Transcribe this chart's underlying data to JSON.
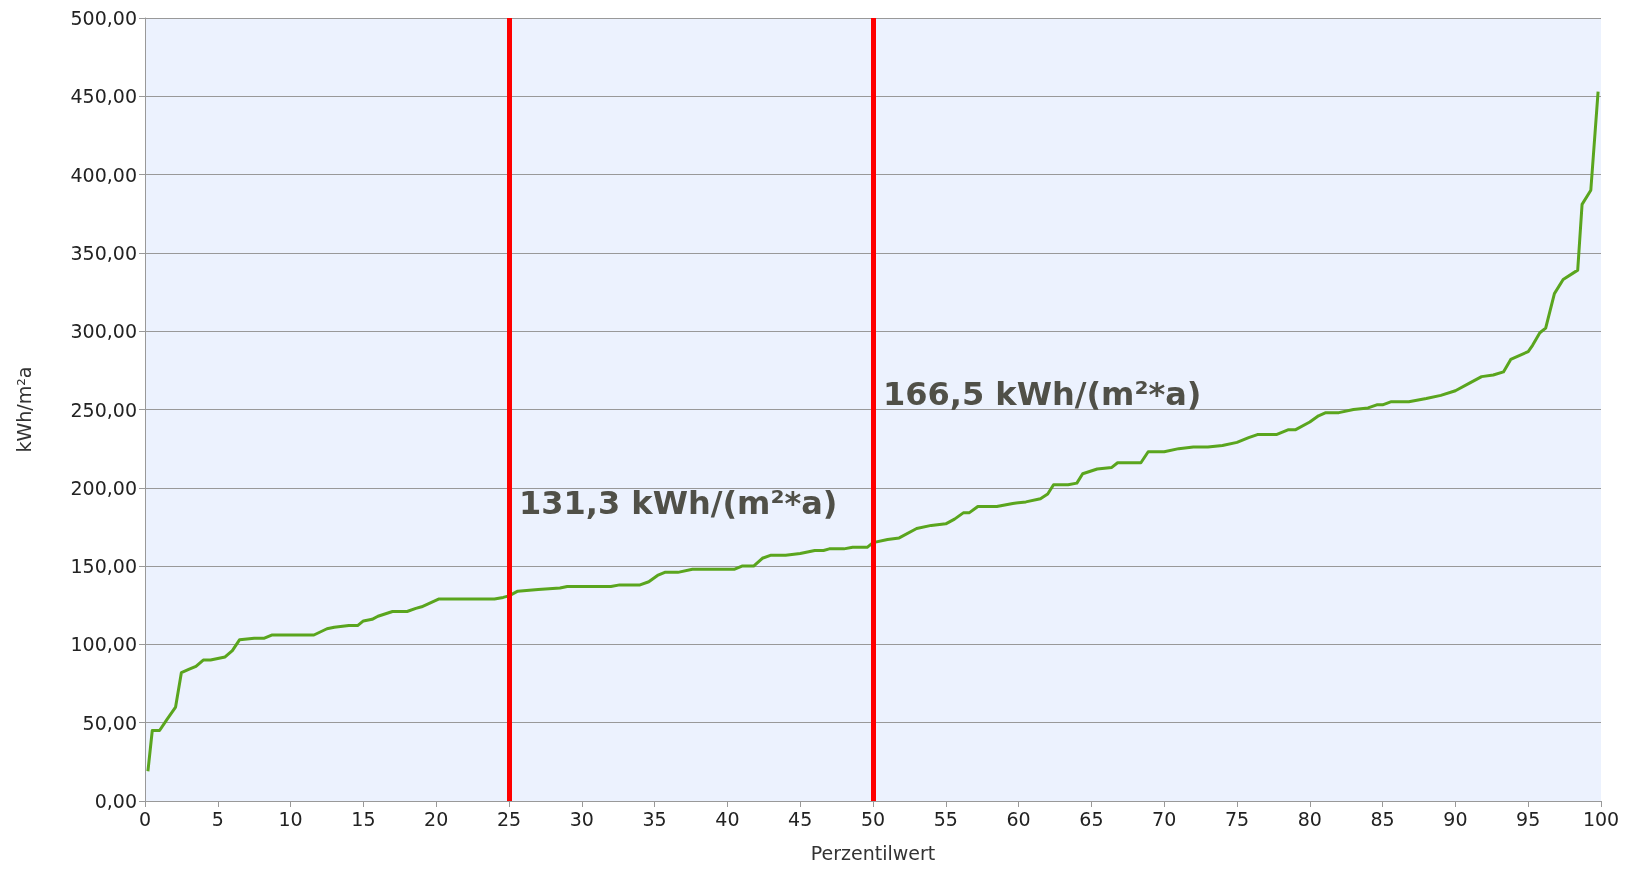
{
  "chart_data": {
    "type": "line",
    "xlabel": "Perzentilwert",
    "ylabel": "kWh/m²a",
    "series": [
      {
        "color": "#5aa51e",
        "x": [
          0.2,
          0.5,
          1.0,
          1.5,
          2.1,
          2.5,
          3.0,
          3.5,
          4.0,
          4.5,
          5.0,
          5.5,
          6.0,
          6.5,
          7.5,
          8.2,
          8.7,
          11.6,
          12.5,
          13.0,
          14.0,
          14.6,
          15.0,
          15.6,
          16.0,
          17.0,
          18.0,
          18.6,
          19.0,
          20.2,
          24.0,
          24.6,
          25.0,
          25.6,
          27.0,
          28.5,
          29.0,
          32.0,
          32.6,
          34.0,
          34.6,
          35.2,
          35.7,
          36.6,
          37.6,
          40.5,
          41.0,
          41.8,
          42.4,
          43.0,
          44.0,
          45.0,
          46.0,
          46.6,
          47.0,
          48.0,
          48.6,
          49.6,
          50.0,
          51.0,
          51.8,
          53.0,
          54.0,
          55.0,
          55.6,
          56.2,
          56.6,
          57.2,
          58.5,
          59.6,
          60.5,
          61.5,
          62.0,
          62.4,
          63.4,
          64.0,
          64.4,
          65.4,
          66.4,
          66.8,
          68.4,
          68.9,
          70.0,
          71.0,
          72.0,
          73.0,
          74.0,
          75.0,
          75.8,
          76.4,
          77.7,
          78.5,
          79.0,
          80.0,
          80.6,
          81.1,
          82.0,
          83.0,
          84.0,
          84.6,
          85.0,
          85.6,
          86.8,
          88.0,
          89.0,
          90.0,
          91.0,
          91.8,
          92.6,
          93.3,
          93.8,
          95.0,
          95.3,
          95.8,
          96.2,
          96.8,
          97.4,
          98.4,
          98.7,
          99.3,
          99.8
        ],
        "values": [
          19,
          45,
          45,
          52,
          60,
          82,
          84,
          86,
          90,
          90,
          91,
          92,
          96,
          103,
          104,
          104,
          106,
          106,
          110,
          111,
          112,
          112,
          115,
          116,
          118,
          121,
          121,
          123,
          124,
          129,
          129,
          130,
          131,
          134,
          135,
          136,
          137,
          137,
          138,
          138,
          140,
          144,
          146,
          146,
          148,
          148,
          150,
          150,
          155,
          157,
          157,
          158,
          160,
          160,
          161,
          161,
          162,
          162,
          165,
          167,
          168,
          174,
          176,
          177,
          180,
          184,
          184,
          188,
          188,
          190,
          191,
          193,
          196,
          202,
          202,
          203,
          209,
          212,
          213,
          216,
          216,
          223,
          223,
          225,
          226,
          226,
          227,
          229,
          232,
          234,
          234,
          237,
          237,
          242,
          246,
          248,
          248,
          250,
          251,
          253,
          253,
          255,
          255,
          257,
          259,
          262,
          267,
          271,
          272,
          274,
          282,
          287,
          291,
          299,
          302,
          324,
          333,
          339,
          381,
          390,
          453
        ]
      }
    ],
    "xlim": [
      0,
      100
    ],
    "xticks": [
      0,
      5,
      10,
      15,
      20,
      25,
      30,
      35,
      40,
      45,
      50,
      55,
      60,
      65,
      70,
      75,
      80,
      85,
      90,
      95,
      100
    ],
    "ylim": [
      0,
      500
    ],
    "yticks": [
      {
        "value": 0,
        "label": "0,00"
      },
      {
        "value": 50,
        "label": "50,00"
      },
      {
        "value": 100,
        "label": "100,00"
      },
      {
        "value": 150,
        "label": "150,00"
      },
      {
        "value": 200,
        "label": "200,00"
      },
      {
        "value": 250,
        "label": "250,00"
      },
      {
        "value": 300,
        "label": "300,00"
      },
      {
        "value": 350,
        "label": "350,00"
      },
      {
        "value": 400,
        "label": "400,00"
      },
      {
        "value": 450,
        "label": "450,00"
      },
      {
        "value": 500,
        "label": "500,00"
      }
    ],
    "ref_lines": [
      {
        "axis": "x",
        "value": 25,
        "label": "131,3 kWh/(m²*a)",
        "color": "#ff0000"
      },
      {
        "axis": "x",
        "value": 50,
        "label": "166,5 kWh/(m²*a)",
        "color": "#ff0000"
      }
    ],
    "grid": "y",
    "marker": "none",
    "line_style": "solid"
  }
}
